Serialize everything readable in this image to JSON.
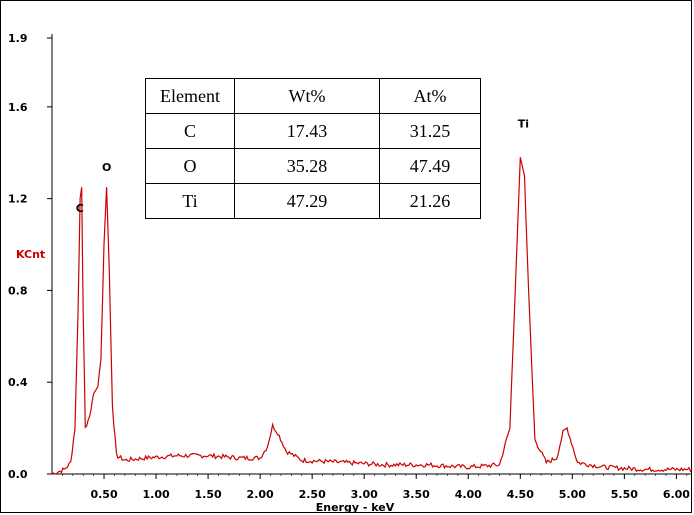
{
  "chart_data": {
    "type": "line",
    "xlabel": "Energy - keV",
    "ylabel": "KCnt",
    "xlim": [
      0.0,
      6.15
    ],
    "ylim": [
      0.0,
      1.9
    ],
    "x_ticks": [
      "0.50",
      "1.00",
      "1.50",
      "2.00",
      "2.50",
      "3.00",
      "3.50",
      "4.00",
      "4.50",
      "5.00",
      "5.50",
      "6.00"
    ],
    "y_ticks": [
      "0.0",
      "0.4",
      "0.8",
      "1.2",
      "1.6",
      "1.9"
    ],
    "line_color": "#cc0000",
    "ylabel_color": "#cc0000",
    "peaks": [
      {
        "label": "C",
        "energy": 0.277,
        "intensity": 1.25
      },
      {
        "label": "O",
        "energy": 0.525,
        "intensity": 1.25
      },
      {
        "label": "Ti",
        "energy": 4.51,
        "intensity": 1.38
      },
      {
        "label": "",
        "energy": 4.93,
        "intensity": 0.2
      },
      {
        "label": "",
        "energy": 2.13,
        "intensity": 0.21
      }
    ],
    "spectrum": [
      [
        0.0,
        0.0
      ],
      [
        0.12,
        0.02
      ],
      [
        0.18,
        0.05
      ],
      [
        0.22,
        0.2
      ],
      [
        0.25,
        0.7
      ],
      [
        0.27,
        1.2
      ],
      [
        0.285,
        1.25
      ],
      [
        0.3,
        0.7
      ],
      [
        0.32,
        0.2
      ],
      [
        0.36,
        0.25
      ],
      [
        0.4,
        0.35
      ],
      [
        0.44,
        0.38
      ],
      [
        0.47,
        0.5
      ],
      [
        0.5,
        1.0
      ],
      [
        0.525,
        1.25
      ],
      [
        0.55,
        0.9
      ],
      [
        0.58,
        0.3
      ],
      [
        0.62,
        0.08
      ],
      [
        0.7,
        0.06
      ],
      [
        0.9,
        0.07
      ],
      [
        1.2,
        0.08
      ],
      [
        1.5,
        0.08
      ],
      [
        1.8,
        0.07
      ],
      [
        2.0,
        0.07
      ],
      [
        2.07,
        0.12
      ],
      [
        2.12,
        0.21
      ],
      [
        2.17,
        0.18
      ],
      [
        2.25,
        0.1
      ],
      [
        2.4,
        0.06
      ],
      [
        2.8,
        0.05
      ],
      [
        3.2,
        0.04
      ],
      [
        3.6,
        0.04
      ],
      [
        4.0,
        0.03
      ],
      [
        4.3,
        0.04
      ],
      [
        4.4,
        0.2
      ],
      [
        4.46,
        0.9
      ],
      [
        4.5,
        1.38
      ],
      [
        4.54,
        1.3
      ],
      [
        4.58,
        0.8
      ],
      [
        4.64,
        0.15
      ],
      [
        4.75,
        0.05
      ],
      [
        4.85,
        0.07
      ],
      [
        4.91,
        0.18
      ],
      [
        4.95,
        0.2
      ],
      [
        4.99,
        0.14
      ],
      [
        5.05,
        0.05
      ],
      [
        5.3,
        0.03
      ],
      [
        5.7,
        0.02
      ],
      [
        6.15,
        0.02
      ]
    ],
    "table": {
      "headers": [
        "Element",
        "Wt%",
        "At%"
      ],
      "rows": [
        [
          "C",
          "17.43",
          "31.25"
        ],
        [
          "O",
          "35.28",
          "47.49"
        ],
        [
          "Ti",
          "47.29",
          "21.26"
        ]
      ]
    }
  }
}
